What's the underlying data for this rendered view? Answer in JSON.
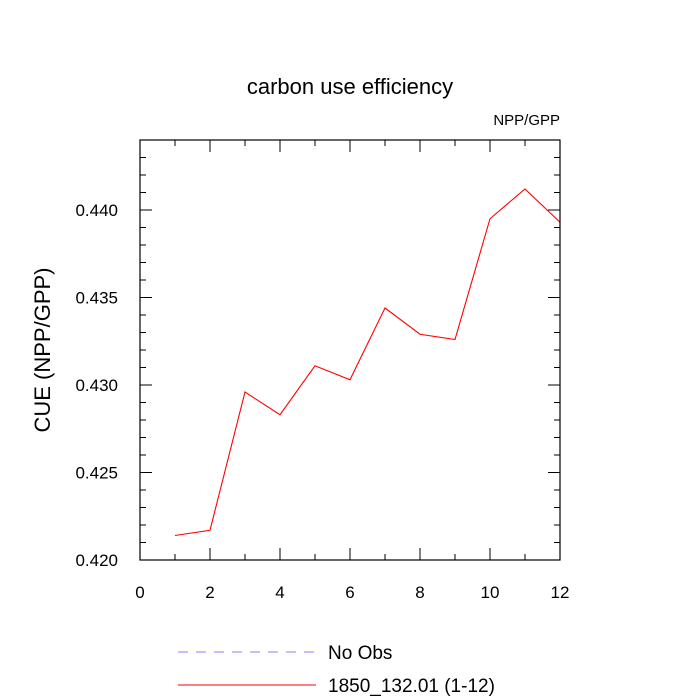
{
  "chart_data": {
    "type": "line",
    "title": "carbon use efficiency",
    "subtitle": "NPP/GPP",
    "xlabel": "",
    "ylabel": "CUE  (NPP/GPP)",
    "xlim": [
      0,
      12
    ],
    "ylim": [
      0.42,
      0.444
    ],
    "xticks": [
      0,
      2,
      4,
      6,
      8,
      10,
      12
    ],
    "yticks": [
      "0.420",
      "0.425",
      "0.430",
      "0.435",
      "0.440"
    ],
    "grid": false,
    "legend_position": "bottom",
    "series": [
      {
        "name": "No Obs",
        "color": "#8080ff",
        "style": "dashed",
        "x": [],
        "values": []
      },
      {
        "name": "1850_132.01 (1-12)",
        "color": "#ff0000",
        "style": "solid",
        "x": [
          1,
          2,
          3,
          4,
          5,
          6,
          7,
          8,
          9,
          10,
          11,
          12
        ],
        "values": [
          0.4214,
          0.4217,
          0.4296,
          0.4283,
          0.4311,
          0.4303,
          0.4344,
          0.4329,
          0.4326,
          0.4395,
          0.4412,
          0.4393
        ]
      }
    ]
  }
}
